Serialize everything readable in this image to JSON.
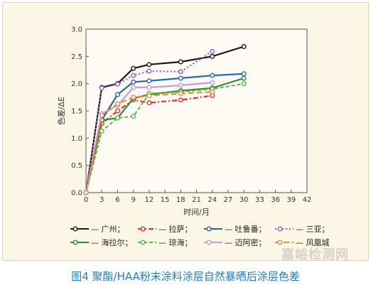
{
  "caption": "图4 聚酯/HAA粉末涂料涂层自然暴晒后涂层色差",
  "watermark": "嘉峪检测网",
  "chart_data": {
    "type": "line",
    "xlabel": "时间/月",
    "ylabel": "色差/ΔE",
    "xlim": [
      0,
      42
    ],
    "ylim": [
      0,
      3.0
    ],
    "xticks": [
      "0",
      "3",
      "6",
      "9",
      "12",
      "15",
      "18",
      "21",
      "24",
      "27",
      "30",
      "33",
      "36",
      "39",
      "42"
    ],
    "yticks": [
      "0.0",
      "0.5",
      "1.0",
      "1.5",
      "2.0",
      "2.5",
      "3.0"
    ],
    "grid": false,
    "legend_position": "bottom",
    "series": [
      {
        "name": "广州",
        "label": "— 广州；",
        "color": "#1a1a1a",
        "dash": "solid",
        "width": 2.2,
        "x": [
          0,
          3,
          6,
          9,
          12,
          18,
          24,
          30
        ],
        "y": [
          0.0,
          1.93,
          2.0,
          2.28,
          2.35,
          2.4,
          2.5,
          2.68
        ]
      },
      {
        "name": "拉萨",
        "label": "— 拉萨；",
        "color": "#e8312b",
        "dash": "dashdot",
        "width": 2.2,
        "x": [
          0,
          3,
          6,
          9,
          12,
          18,
          24
        ],
        "y": [
          0.0,
          1.27,
          1.5,
          1.7,
          1.65,
          1.7,
          1.78
        ]
      },
      {
        "name": "吐鲁番",
        "label": "— 吐鲁番；",
        "color": "#2a64b0",
        "dash": "solid",
        "width": 2.2,
        "x": [
          0,
          3,
          6,
          9,
          12,
          18,
          24,
          30
        ],
        "y": [
          0.0,
          1.33,
          1.8,
          2.03,
          2.05,
          2.1,
          2.15,
          2.18
        ]
      },
      {
        "name": "三亚",
        "label": "— 三亚；",
        "color": "#9b59c9",
        "dash": "dotted",
        "width": 2.2,
        "x": [
          0,
          3,
          6,
          9,
          12,
          18,
          24
        ],
        "y": [
          0.0,
          1.92,
          1.99,
          2.15,
          2.23,
          2.22,
          2.59
        ]
      },
      {
        "name": "海拉尔",
        "label": "— 海拉尔；",
        "color": "#2e8b3e",
        "dash": "solid",
        "width": 2.2,
        "x": [
          0,
          3,
          6,
          9,
          12,
          18,
          24,
          30
        ],
        "y": [
          0.0,
          1.33,
          1.37,
          1.73,
          1.8,
          1.87,
          1.92,
          2.1
        ]
      },
      {
        "name": "琼海",
        "label": "— 琼海；",
        "color": "#57b54a",
        "dash": "dashed",
        "width": 2.0,
        "x": [
          0,
          3,
          6,
          9,
          12,
          18,
          24,
          30
        ],
        "y": [
          0.0,
          1.13,
          1.37,
          1.4,
          1.82,
          1.85,
          1.9,
          2.0
        ]
      },
      {
        "name": "迈阿密",
        "label": "— 迈阿密；",
        "color": "#c79ad9",
        "dash": "solid",
        "width": 2.2,
        "x": [
          0,
          3,
          6,
          9,
          12,
          18,
          24
        ],
        "y": [
          0.0,
          1.45,
          1.6,
          1.93,
          1.93,
          1.97,
          2.02
        ]
      },
      {
        "name": "凤凰城",
        "label": "— 凤凰城",
        "color": "#f0883a",
        "dash": "longdash",
        "width": 2.2,
        "x": [
          0,
          3,
          6,
          9,
          12,
          18,
          24
        ],
        "y": [
          0.0,
          1.42,
          1.63,
          1.75,
          1.78,
          1.82,
          1.85
        ]
      }
    ]
  }
}
